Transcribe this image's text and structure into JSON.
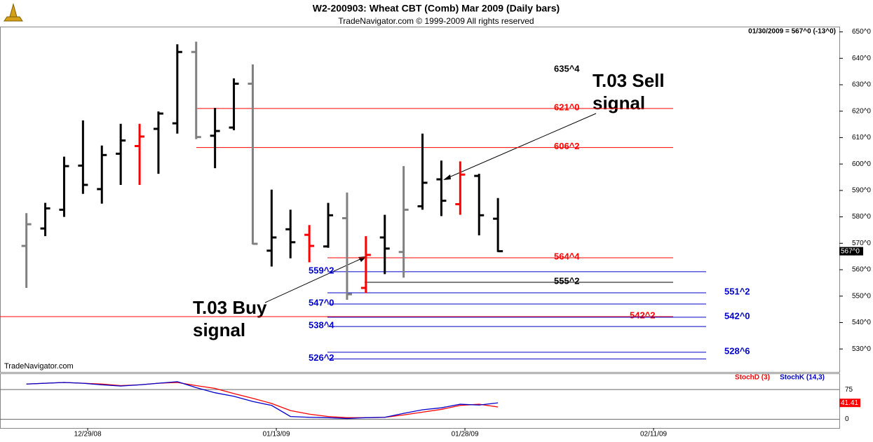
{
  "chart_data": [
    {
      "type": "ohlc",
      "title": "W2-200903:  Wheat CBT (Comb) Mar 2009  (Daily bars)",
      "subtitle": "TradeNavigator.com © 1999-2009 All rights reserved",
      "status": "01/30/2009 = 567^0 (-13^0)",
      "watermark": "TradeNavigator.com",
      "open": [
        569,
        575.6,
        582.7,
        599.4,
        590.5,
        603.9,
        606.8,
        613.3,
        615.4,
        642.4,
        610.7,
        613.8,
        630.4,
        567.2,
        575.3,
        573.2,
        568.8,
        579.5,
        553.1,
        572.2,
        566.7,
        584,
        594.2,
        584.8,
        595.5,
        579.3
      ],
      "high": [
        581.4,
        585.3,
        602.8,
        616.5,
        607,
        615.2,
        615.2,
        619.9,
        645.3,
        646.3,
        621.2,
        632.4,
        637.7,
        590.3,
        582.7,
        576.9,
        585.3,
        589.2,
        572.7,
        580.8,
        599.2,
        611.5,
        601.3,
        601,
        596.3,
        587.1
      ],
      "low": [
        553.1,
        572.7,
        580,
        588.7,
        585,
        592.1,
        592.1,
        596.3,
        611.5,
        609.4,
        598.4,
        612.8,
        569.6,
        561.2,
        564.3,
        562.8,
        568.3,
        548.6,
        551.2,
        558.3,
        557,
        582.7,
        580.3,
        580.8,
        573,
        566.7
      ],
      "close": [
        577.2,
        583.2,
        599.2,
        592.1,
        603.4,
        608.9,
        610.4,
        619.1,
        642.4,
        610.2,
        612.5,
        630.4,
        569.8,
        572.2,
        570.4,
        569,
        580.6,
        550.7,
        565.6,
        568,
        582.7,
        592.9,
        586.1,
        596,
        580.6,
        567
      ],
      "colors": [
        "#808080",
        "#000000",
        "#000000",
        "#000000",
        "#000000",
        "#000000",
        "#ff0000",
        "#000000",
        "#000000",
        "#808080",
        "#000000",
        "#000000",
        "#808080",
        "#000000",
        "#000000",
        "#ff0000",
        "#000000",
        "#808080",
        "#ff0000",
        "#000000",
        "#808080",
        "#000000",
        "#000000",
        "#ff0000",
        "#000000",
        "#000000"
      ],
      "last_label": {
        "value": 567,
        "label": "567^0"
      },
      "xlim": [
        -1.4,
        43.1
      ],
      "ylim": [
        521.3,
        652
      ],
      "yticks": [
        {
          "value": 650,
          "label": "650^0"
        },
        {
          "value": 640,
          "label": "640^0"
        },
        {
          "value": 630,
          "label": "630^0"
        },
        {
          "value": 620,
          "label": "620^0"
        },
        {
          "value": 610,
          "label": "610^0"
        },
        {
          "value": 600,
          "label": "600^0"
        },
        {
          "value": 590,
          "label": "590^0"
        },
        {
          "value": 580,
          "label": "580^0"
        },
        {
          "value": 570,
          "label": "570^0"
        },
        {
          "value": 560,
          "label": "560^0"
        },
        {
          "value": 550,
          "label": "550^0"
        },
        {
          "value": 540,
          "label": "540^0"
        },
        {
          "value": 530,
          "label": "530^0"
        }
      ],
      "levels": [
        {
          "value": 635.5,
          "label": "635^4",
          "color": "#000000"
        },
        {
          "value": 621,
          "label": "621^0",
          "color": "#ff0000"
        },
        {
          "value": 606.25,
          "label": "606^2",
          "color": "#ff0000"
        },
        {
          "value": 564.5,
          "label": "564^4",
          "color": "#ff0000"
        },
        {
          "value": 559.25,
          "label": "559^2",
          "color": "#0000cc"
        },
        {
          "value": 555.25,
          "label": "555^2",
          "color": "#000000"
        },
        {
          "value": 551.25,
          "label": "551^2",
          "color": "#0000cc"
        },
        {
          "value": 547,
          "label": "547^0",
          "color": "#0000cc"
        },
        {
          "value": 542.25,
          "label": "542^2",
          "color": "#ff0000"
        },
        {
          "value": 542,
          "label": "542^0",
          "color": "#0000cc"
        },
        {
          "value": 538.5,
          "label": "538^4",
          "color": "#0000cc"
        },
        {
          "value": 528.75,
          "label": "528^6",
          "color": "#0000cc"
        },
        {
          "value": 526.25,
          "label": "526^2",
          "color": "#0000cc"
        }
      ],
      "annotations": [
        {
          "text": "T.03 Sell",
          "text2": "signal"
        },
        {
          "text": "T.03 Buy",
          "text2": "signal"
        }
      ]
    },
    {
      "type": "line",
      "xlim": [
        -1.4,
        43.1
      ],
      "ylim": [
        -22,
        116
      ],
      "yticks": [
        0,
        75
      ],
      "xticks": [
        {
          "value": 3.25,
          "label": "12/29/08"
        },
        {
          "value": 13.25,
          "label": "01/13/09"
        },
        {
          "value": 23.25,
          "label": "01/28/09"
        },
        {
          "value": 33.25,
          "label": "02/11/09"
        }
      ],
      "series": [
        {
          "name": "StochD (3)",
          "color": "#ff0000",
          "values": [
            89,
            91,
            93,
            91,
            89,
            85,
            87,
            91,
            93,
            85,
            78,
            65,
            53,
            40,
            22,
            13,
            7,
            4,
            4,
            5,
            11,
            18,
            25,
            35,
            38,
            31
          ]
        },
        {
          "name": "StochK (14,3)",
          "color": "#0000cc",
          "values": [
            89,
            91,
            93,
            91,
            87,
            84,
            87,
            91,
            95,
            80,
            67,
            58,
            45,
            35,
            7,
            5,
            4,
            2,
            4,
            5,
            15,
            24,
            29,
            38,
            36,
            41.41
          ]
        }
      ]
    }
  ]
}
